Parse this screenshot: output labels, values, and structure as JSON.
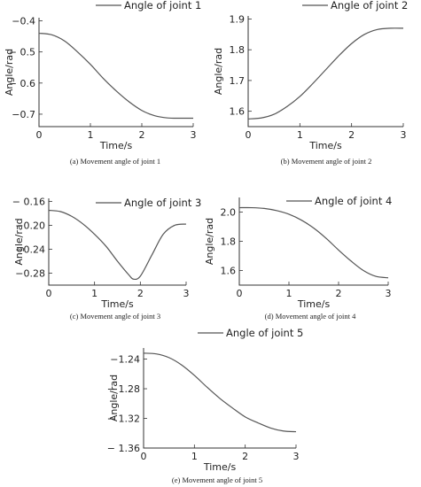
{
  "chart_data": [
    {
      "type": "line",
      "caption": "(a) Movement angle of joint 1",
      "xlabel": "Time/s",
      "ylabel": "Angle/rad",
      "xlim": [
        0,
        3
      ],
      "ylim": [
        -0.74,
        -0.39
      ],
      "xticks": [
        0,
        1,
        2,
        3
      ],
      "xtick_labels": [
        "0",
        "1",
        "2",
        "3"
      ],
      "yticks": [
        -0.4,
        -0.5,
        -0.6,
        -0.7
      ],
      "ytick_labels": [
        "−0.4",
        "− 0.5",
        "− 0.6",
        "−0.7"
      ],
      "legend_position": "top",
      "series": [
        {
          "name": "Angle of joint 1",
          "x": [
            0,
            0.25,
            0.5,
            0.75,
            1.0,
            1.25,
            1.5,
            1.75,
            2.0,
            2.25,
            2.5,
            2.75,
            3.0
          ],
          "y": [
            -0.44,
            -0.445,
            -0.465,
            -0.5,
            -0.54,
            -0.585,
            -0.625,
            -0.66,
            -0.688,
            -0.705,
            -0.712,
            -0.713,
            -0.713
          ]
        }
      ]
    },
    {
      "type": "line",
      "caption": "(b) Movement angle of joint 2",
      "xlabel": "Time/s",
      "ylabel": "Angle/rad",
      "xlim": [
        0,
        3
      ],
      "ylim": [
        1.55,
        1.91
      ],
      "xticks": [
        0,
        1,
        2,
        3
      ],
      "xtick_labels": [
        "0",
        "1",
        "2",
        "3"
      ],
      "yticks": [
        1.9,
        1.8,
        1.7,
        1.6
      ],
      "ytick_labels": [
        "1.9",
        "1.8",
        "1.7",
        "1.6"
      ],
      "legend_position": "top-right",
      "series": [
        {
          "name": "Angle of joint 2",
          "x": [
            0,
            0.25,
            0.5,
            0.75,
            1.0,
            1.25,
            1.5,
            1.75,
            2.0,
            2.25,
            2.5,
            2.75,
            3.0
          ],
          "y": [
            1.575,
            1.578,
            1.59,
            1.615,
            1.648,
            1.69,
            1.735,
            1.78,
            1.82,
            1.85,
            1.866,
            1.87,
            1.87
          ]
        }
      ]
    },
    {
      "type": "line",
      "caption": "(c) Movement angle of joint 3",
      "xlabel": "Time/s",
      "ylabel": "Angle/rad",
      "xlim": [
        0,
        3
      ],
      "ylim": [
        -0.3,
        -0.155
      ],
      "xticks": [
        0,
        1,
        2,
        3
      ],
      "xtick_labels": [
        "0",
        "1",
        "2",
        "3"
      ],
      "yticks": [
        -0.16,
        -0.2,
        -0.24,
        -0.28
      ],
      "ytick_labels": [
        "− 0.16",
        "−0.20",
        "−0.24",
        "−0.28"
      ],
      "legend_position": "top",
      "series": [
        {
          "name": "Angle of joint 3",
          "x": [
            0,
            0.25,
            0.5,
            0.75,
            1.0,
            1.25,
            1.5,
            1.75,
            1.85,
            2.0,
            2.25,
            2.5,
            2.75,
            3.0
          ],
          "y": [
            -0.175,
            -0.177,
            -0.185,
            -0.198,
            -0.215,
            -0.235,
            -0.26,
            -0.283,
            -0.29,
            -0.285,
            -0.25,
            -0.215,
            -0.2,
            -0.198
          ]
        }
      ]
    },
    {
      "type": "line",
      "caption": "(d) Movement angle of joint 4",
      "xlabel": "Time/s",
      "ylabel": "Angle/rad",
      "xlim": [
        0,
        3
      ],
      "ylim": [
        1.5,
        2.1
      ],
      "xticks": [
        0,
        1,
        2,
        3
      ],
      "xtick_labels": [
        "0",
        "1",
        "2",
        "3"
      ],
      "yticks": [
        2.0,
        1.8,
        1.6
      ],
      "ytick_labels": [
        "2.0",
        "1.8",
        "1.6"
      ],
      "legend_position": "top-right",
      "series": [
        {
          "name": "Angle of joint 4",
          "x": [
            0,
            0.25,
            0.5,
            0.75,
            1.0,
            1.25,
            1.5,
            1.75,
            2.0,
            2.25,
            2.5,
            2.75,
            3.0
          ],
          "y": [
            2.03,
            2.03,
            2.025,
            2.01,
            1.985,
            1.945,
            1.89,
            1.82,
            1.74,
            1.665,
            1.6,
            1.56,
            1.55
          ]
        }
      ]
    },
    {
      "type": "line",
      "caption": "(e) Movement angle of joint 5",
      "xlabel": "Time/s",
      "ylabel": "Angle/rad",
      "xlim": [
        0,
        3
      ],
      "ylim": [
        -1.36,
        -1.225
      ],
      "xticks": [
        0,
        1,
        2,
        3
      ],
      "xtick_labels": [
        "0",
        "1",
        "2",
        "3"
      ],
      "yticks": [
        -1.24,
        -1.28,
        -1.32,
        -1.36
      ],
      "ytick_labels": [
        "−1.24",
        "− 1.28",
        "− 1.32",
        "− 1.36"
      ],
      "legend_position": "top",
      "series": [
        {
          "name": "Angle of joint 5",
          "x": [
            0,
            0.25,
            0.5,
            0.75,
            1.0,
            1.25,
            1.5,
            1.75,
            2.0,
            2.25,
            2.5,
            2.75,
            3.0
          ],
          "y": [
            -1.232,
            -1.233,
            -1.238,
            -1.248,
            -1.262,
            -1.278,
            -1.293,
            -1.306,
            -1.318,
            -1.326,
            -1.333,
            -1.337,
            -1.338
          ]
        }
      ]
    }
  ]
}
